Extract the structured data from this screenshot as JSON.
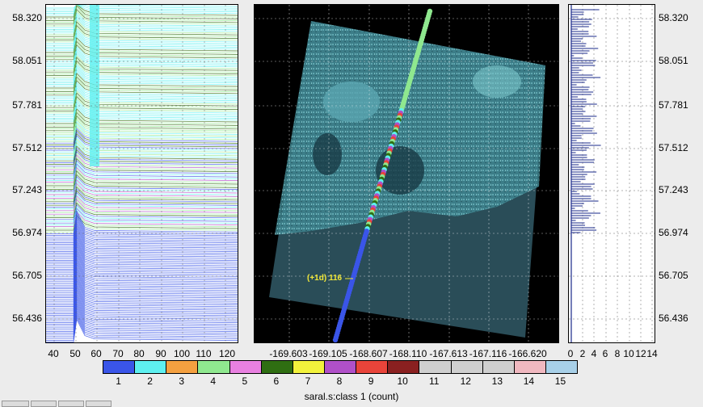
{
  "left_panel": {
    "y_ticks": [
      "58.320",
      "58.051",
      "57.781",
      "57.512",
      "57.243",
      "56.974",
      "56.705",
      "56.436"
    ],
    "x_ticks": [
      "40",
      "50",
      "60",
      "70",
      "80",
      "90",
      "100",
      "110",
      "120"
    ]
  },
  "map_panel": {
    "x_ticks": [
      "-169.603",
      "-169.105",
      "-168.607",
      "-168.110",
      "-167.613",
      "-167.116",
      "-166.620"
    ],
    "track_label": "(+1d) 116"
  },
  "hist_panel": {
    "y_ticks": [
      "58.320",
      "58.051",
      "57.781",
      "57.512",
      "57.243",
      "56.974",
      "56.705",
      "56.436"
    ],
    "x_ticks": [
      "0",
      "2",
      "4",
      "6",
      "8",
      "10",
      "12",
      "14"
    ]
  },
  "colorbar": {
    "title": "saral.s:class  1 (count)",
    "labels": [
      "1",
      "2",
      "3",
      "4",
      "5",
      "6",
      "7",
      "8",
      "9",
      "10",
      "11",
      "12",
      "13",
      "14",
      "15"
    ],
    "colors": [
      "#3a55e8",
      "#5ef0f0",
      "#f4a040",
      "#8fe88f",
      "#e880e0",
      "#2f6e12",
      "#f2f23c",
      "#b050c8",
      "#e8443a",
      "#8a2020",
      "#cfcfcf",
      "#cfcfcf",
      "#cfcfcf",
      "#f0b8c0",
      "#a8d0e8"
    ]
  },
  "colors": {
    "map_background": "#000000",
    "scene_tint": "#4a8f9a",
    "histogram_bar": "#1a2a8a"
  }
}
